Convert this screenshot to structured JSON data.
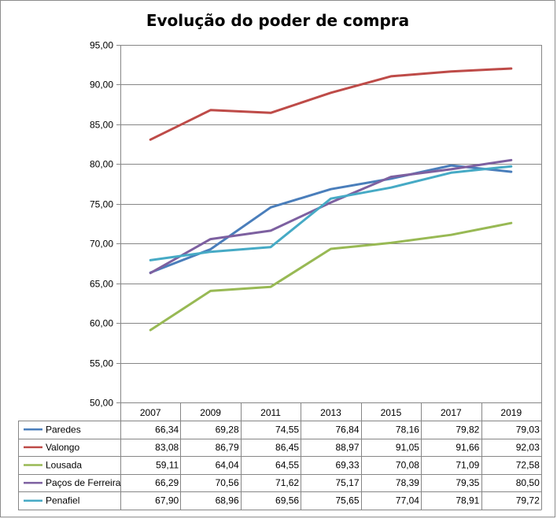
{
  "chart_data": {
    "type": "line",
    "title": "Evolução do poder de compra",
    "categories": [
      "2007",
      "2009",
      "2011",
      "2013",
      "2015",
      "2017",
      "2019"
    ],
    "ylim": [
      50,
      95
    ],
    "yticks": [
      "50,00",
      "55,00",
      "60,00",
      "65,00",
      "70,00",
      "75,00",
      "80,00",
      "85,00",
      "90,00",
      "95,00"
    ],
    "grid": true,
    "legend": "data-table-below",
    "series": [
      {
        "name": "Paredes",
        "color": "#4A7EBB",
        "values": [
          66.34,
          69.28,
          74.55,
          76.84,
          78.16,
          79.82,
          79.03
        ],
        "labels": [
          "66,34",
          "69,28",
          "74,55",
          "76,84",
          "78,16",
          "79,82",
          "79,03"
        ]
      },
      {
        "name": "Valongo",
        "color": "#BE4B48",
        "values": [
          83.08,
          86.79,
          86.45,
          88.97,
          91.05,
          91.66,
          92.03
        ],
        "labels": [
          "83,08",
          "86,79",
          "86,45",
          "88,97",
          "91,05",
          "91,66",
          "92,03"
        ]
      },
      {
        "name": "Lousada",
        "color": "#98B954",
        "values": [
          59.11,
          64.04,
          64.55,
          69.33,
          70.08,
          71.09,
          72.58
        ],
        "labels": [
          "59,11",
          "64,04",
          "64,55",
          "69,33",
          "70,08",
          "71,09",
          "72,58"
        ]
      },
      {
        "name": "Paços de Ferreira",
        "color": "#7D60A0",
        "values": [
          66.29,
          70.56,
          71.62,
          75.17,
          78.39,
          79.35,
          80.5
        ],
        "labels": [
          "66,29",
          "70,56",
          "71,62",
          "75,17",
          "78,39",
          "79,35",
          "80,50"
        ]
      },
      {
        "name": "Penafiel",
        "color": "#46AAC5",
        "values": [
          67.9,
          68.96,
          69.56,
          75.65,
          77.04,
          78.91,
          79.72
        ],
        "labels": [
          "67,90",
          "68,96",
          "69,56",
          "75,65",
          "77,04",
          "78,91",
          "79,72"
        ]
      }
    ]
  }
}
